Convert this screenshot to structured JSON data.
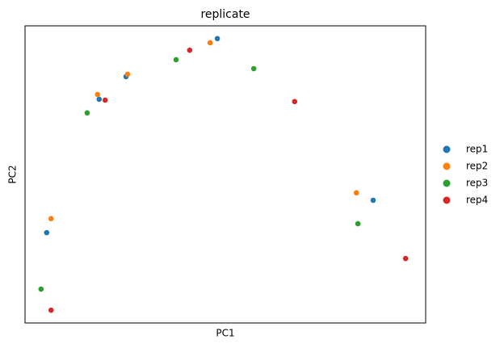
{
  "chart_data": {
    "type": "scatter",
    "title": "replicate",
    "xlabel": "PC1",
    "ylabel": "PC2",
    "xlim": [
      0,
      100
    ],
    "ylim": [
      0,
      100
    ],
    "legend": "right",
    "series": [
      {
        "name": "rep1",
        "color": "#1f77b4",
        "x": [
          48.0,
          25.2,
          18.5,
          5.4,
          86.9
        ],
        "y": [
          95.7,
          82.9,
          75.3,
          30.4,
          41.3
        ]
      },
      {
        "name": "rep2",
        "color": "#ff7f0e",
        "x": [
          46.2,
          25.6,
          18.1,
          6.5,
          82.7
        ],
        "y": [
          94.3,
          83.7,
          76.9,
          35.1,
          43.8
        ]
      },
      {
        "name": "rep3",
        "color": "#2ca02c",
        "x": [
          37.7,
          57.1,
          15.5,
          4.0,
          83.1
        ],
        "y": [
          88.6,
          85.6,
          70.7,
          11.4,
          33.4
        ]
      },
      {
        "name": "rep4",
        "color": "#d62728",
        "x": [
          41.1,
          20.0,
          67.3,
          6.5,
          95.0
        ],
        "y": [
          91.8,
          75.0,
          74.5,
          4.3,
          21.7
        ]
      }
    ]
  }
}
